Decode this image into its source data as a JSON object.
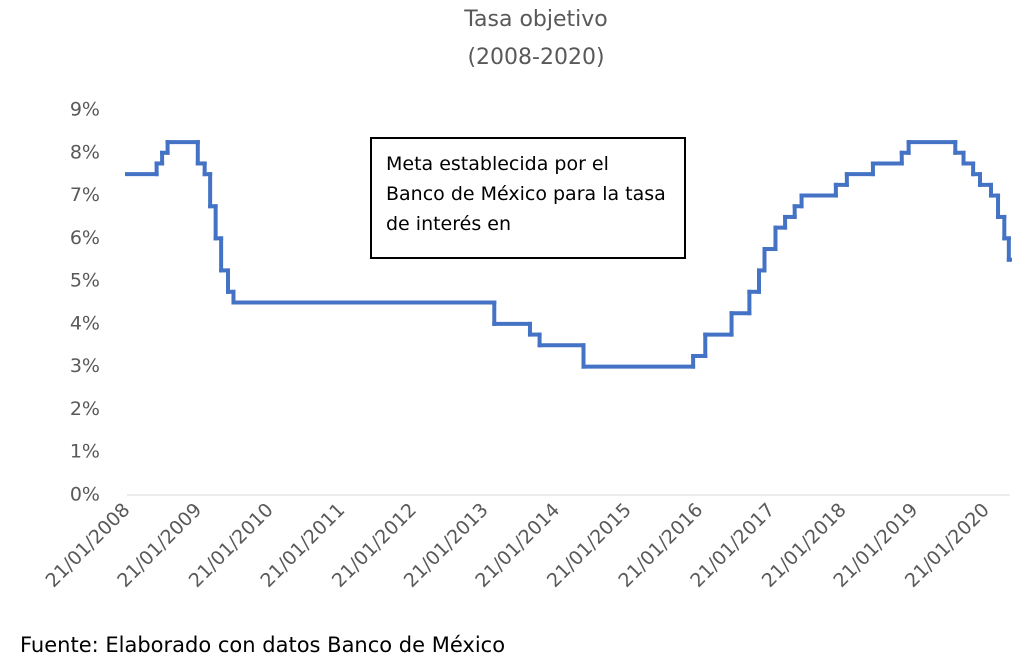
{
  "chart_data": {
    "type": "step-line",
    "title": "Tasa objetivo",
    "subtitle": "(2008-2020)",
    "annotation": "Meta establecida por el Banco de México para la tasa de interés en",
    "source": "Fuente: Elaborado con datos Banco de México",
    "series": [
      {
        "name": "Tasa objetivo",
        "color": "#4472c4",
        "x": [
          "21/01/2008",
          "20/06/2008",
          "18/07/2008",
          "15/08/2008",
          "16/01/2009",
          "20/02/2009",
          "20/03/2009",
          "17/04/2009",
          "15/05/2009",
          "19/06/2009",
          "17/07/2009",
          "08/03/2013",
          "06/09/2013",
          "25/10/2013",
          "06/06/2014",
          "17/12/2015",
          "17/02/2016",
          "30/06/2016",
          "29/09/2016",
          "17/11/2016",
          "15/12/2016",
          "09/02/2017",
          "30/03/2017",
          "18/05/2017",
          "22/06/2017",
          "14/12/2017",
          "08/02/2018",
          "21/06/2018",
          "15/11/2018",
          "20/12/2018",
          "15/08/2019",
          "26/09/2019",
          "14/11/2019",
          "19/12/2019",
          "13/02/2020",
          "20/03/2020",
          "21/04/2020",
          "14/05/2020"
        ],
        "values": [
          7.5,
          7.75,
          8,
          8.25,
          7.75,
          7.5,
          6.75,
          6,
          5.25,
          4.75,
          4.5,
          4,
          3.75,
          3.5,
          3,
          3.25,
          3.75,
          4.25,
          4.75,
          5.25,
          5.75,
          6.25,
          6.5,
          6.75,
          7,
          7.25,
          7.5,
          7.75,
          8,
          8.25,
          8,
          7.75,
          7.5,
          7.25,
          7,
          6.5,
          6,
          5.5
        ]
      }
    ],
    "xlim": [
      "21/01/2008",
      "20/05/2020"
    ],
    "xticks": [
      "21/01/2008",
      "21/01/2009",
      "21/01/2010",
      "21/01/2011",
      "21/01/2012",
      "21/01/2013",
      "21/01/2014",
      "21/01/2015",
      "21/01/2016",
      "21/01/2017",
      "21/01/2018",
      "21/01/2019",
      "21/01/2020"
    ],
    "ylim": [
      0,
      9
    ],
    "yticks": [
      {
        "value": 0,
        "label": "0%"
      },
      {
        "value": 1,
        "label": "1%"
      },
      {
        "value": 2,
        "label": "2%"
      },
      {
        "value": 3,
        "label": "3%"
      },
      {
        "value": 4,
        "label": "4%"
      },
      {
        "value": 5,
        "label": "5%"
      },
      {
        "value": 6,
        "label": "6%"
      },
      {
        "value": 7,
        "label": "7%"
      },
      {
        "value": 8,
        "label": "8%"
      },
      {
        "value": 9,
        "label": "9%"
      }
    ]
  }
}
